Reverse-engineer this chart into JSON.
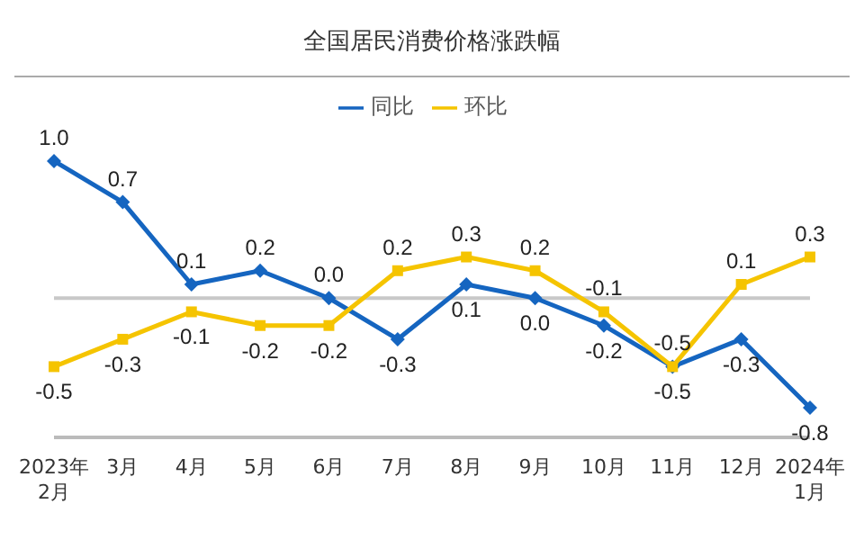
{
  "chart_data": {
    "type": "line",
    "title": "全国居民消费价格涨跌幅",
    "categories": [
      "2023年\n2月",
      "3月",
      "4月",
      "5月",
      "6月",
      "7月",
      "8月",
      "9月",
      "10月",
      "11月",
      "12月",
      "2024年\n1月"
    ],
    "series": [
      {
        "name": "同比",
        "color": "#1565c0",
        "marker": "diamond",
        "values": [
          1.0,
          0.7,
          0.1,
          0.2,
          0.0,
          -0.3,
          0.1,
          0.0,
          -0.2,
          -0.5,
          -0.3,
          -0.8
        ],
        "value_labels": [
          "1.0",
          "0.7",
          "0.1",
          "0.2",
          "0.0",
          "-0.3",
          "0.1",
          "0.0",
          "-0.2",
          "-0.5",
          "-0.3",
          "-0.8"
        ]
      },
      {
        "name": "环比",
        "color": "#f5c400",
        "marker": "square",
        "values": [
          -0.5,
          -0.3,
          -0.1,
          -0.2,
          -0.2,
          0.2,
          0.3,
          0.2,
          -0.1,
          -0.5,
          0.1,
          0.3
        ],
        "value_labels": [
          "-0.5",
          "-0.3",
          "-0.1",
          "-0.2",
          "-0.2",
          "0.2",
          "0.3",
          "0.2",
          "-0.1",
          "-0.5",
          "0.1",
          "0.3"
        ]
      }
    ],
    "ref_lines": [
      {
        "axis": "y",
        "value": 0,
        "color": "#c8c8c8"
      }
    ],
    "legend": "top"
  }
}
